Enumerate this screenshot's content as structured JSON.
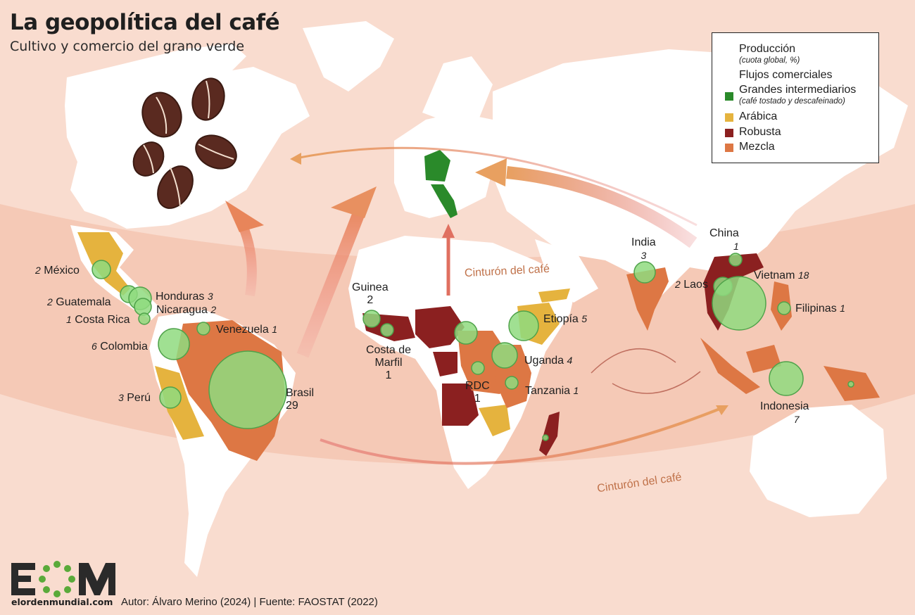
{
  "title": "La geopolítica del café",
  "subtitle": "Cultivo y comercio del grano verde",
  "legend": {
    "production": "Producción",
    "production_sub": "(cuota global, %)",
    "flows": "Flujos comerciales",
    "intermediaries": "Grandes intermediarios",
    "intermediaries_sub": "(café tostado y descafeinado)",
    "arabica": "Arábica",
    "robusta": "Robusta",
    "mix": "Mezcla"
  },
  "colors": {
    "arabica": "#e5b33e",
    "robusta": "#8b2020",
    "mix": "#dd7744",
    "intermediaries": "#2a8a2a",
    "production": "#8fda7f",
    "flow": "#e07060",
    "background": "#f9dccf"
  },
  "belt_labels": [
    "Cinturón del café",
    "Cinturón del café"
  ],
  "countries": [
    {
      "name": "México",
      "value": "2"
    },
    {
      "name": "Guatemala",
      "value": "2"
    },
    {
      "name": "Honduras",
      "value": "3"
    },
    {
      "name": "Nicaragua",
      "value": "2"
    },
    {
      "name": "Costa Rica",
      "value": "1"
    },
    {
      "name": "Venezuela",
      "value": "1"
    },
    {
      "name": "Colombia",
      "value": "6"
    },
    {
      "name": "Perú",
      "value": "3"
    },
    {
      "name": "Brasil",
      "value": "29"
    },
    {
      "name": "Guinea",
      "value": "2"
    },
    {
      "name": "Costa de Marfil",
      "value": "1"
    },
    {
      "name": "RDC",
      "value": "1"
    },
    {
      "name": "Etiopía",
      "value": "5"
    },
    {
      "name": "Uganda",
      "value": "4"
    },
    {
      "name": "Tanzania",
      "value": "1"
    },
    {
      "name": "India",
      "value": "3"
    },
    {
      "name": "China",
      "value": "1"
    },
    {
      "name": "Laos",
      "value": "2"
    },
    {
      "name": "Vietnam",
      "value": "18"
    },
    {
      "name": "Filipinas",
      "value": "1"
    },
    {
      "name": "Indonesia",
      "value": "7"
    }
  ],
  "logo_text": "EOM",
  "logo_url": "elordenmundial.com",
  "credit": "Autor: Álvaro Merino (2024) | Fuente: FAOSTAT (2022)"
}
